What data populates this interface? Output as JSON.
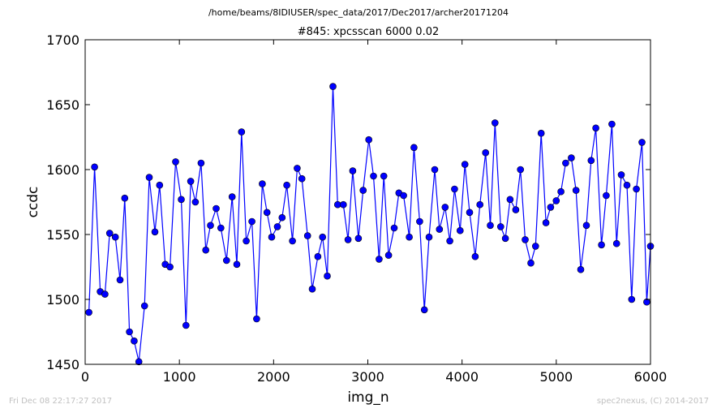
{
  "header": {
    "path": "/home/beams/8IDIUSER/spec_data/2017/Dec2017/archer20171204"
  },
  "footer": {
    "timestamp": "Fri Dec 08 22:17:27 2017",
    "credit": "spec2nexus, (C) 2014-2017"
  },
  "colors": {
    "series": "#0000ff",
    "axes": "#000000",
    "footer": "#c0c0c0"
  },
  "chart_data": {
    "type": "line",
    "title": "#845: xpcsscan 6000 0.02",
    "xlabel": "img_n",
    "ylabel": "ccdc",
    "xlim": [
      0,
      6000
    ],
    "ylim": [
      1450,
      1700
    ],
    "xticks": [
      "0",
      "1000",
      "2000",
      "3000",
      "4000",
      "5000",
      "6000"
    ],
    "yticks": [
      "1450",
      "1500",
      "1550",
      "1600",
      "1650",
      "1700"
    ],
    "grid": false,
    "legend": false,
    "marker": "circle",
    "x": [
      40,
      100,
      160,
      210,
      260,
      320,
      370,
      420,
      470,
      520,
      570,
      630,
      680,
      740,
      790,
      850,
      900,
      960,
      1020,
      1070,
      1120,
      1170,
      1230,
      1280,
      1330,
      1390,
      1440,
      1500,
      1560,
      1610,
      1660,
      1710,
      1770,
      1820,
      1880,
      1930,
      1980,
      2040,
      2090,
      2140,
      2200,
      2250,
      2300,
      2360,
      2410,
      2470,
      2520,
      2570,
      2630,
      2680,
      2740,
      2790,
      2840,
      2900,
      2950,
      3010,
      3060,
      3120,
      3170,
      3220,
      3280,
      3330,
      3380,
      3440,
      3490,
      3550,
      3600,
      3650,
      3710,
      3760,
      3820,
      3870,
      3920,
      3980,
      4030,
      4080,
      4140,
      4190,
      4250,
      4300,
      4350,
      4410,
      4460,
      4510,
      4570,
      4620,
      4670,
      4730,
      4780,
      4840,
      4890,
      4940,
      5000,
      5050,
      5100,
      5160,
      5210,
      5260,
      5320,
      5370,
      5420,
      5480,
      5530,
      5590,
      5640,
      5690,
      5750,
      5800,
      5850,
      5910,
      5960,
      6000
    ],
    "y": [
      1490,
      1602,
      1506,
      1504,
      1551,
      1548,
      1515,
      1578,
      1475,
      1468,
      1452,
      1495,
      1594,
      1552,
      1588,
      1527,
      1525,
      1606,
      1577,
      1480,
      1591,
      1575,
      1605,
      1538,
      1557,
      1570,
      1555,
      1530,
      1579,
      1527,
      1629,
      1545,
      1560,
      1485,
      1589,
      1567,
      1548,
      1556,
      1563,
      1588,
      1545,
      1601,
      1593,
      1549,
      1508,
      1533,
      1548,
      1518,
      1664,
      1573,
      1573,
      1546,
      1599,
      1547,
      1584,
      1623,
      1595,
      1531,
      1595,
      1534,
      1555,
      1582,
      1580,
      1548,
      1617,
      1560,
      1492,
      1548,
      1600,
      1554,
      1571,
      1545,
      1585,
      1553,
      1604,
      1567,
      1533,
      1573,
      1613,
      1557,
      1636,
      1556,
      1547,
      1577,
      1569,
      1600,
      1546,
      1528,
      1541,
      1628,
      1559,
      1571,
      1576,
      1583,
      1605,
      1609,
      1584,
      1523,
      1557,
      1607,
      1632,
      1542,
      1580,
      1635,
      1543,
      1596,
      1588,
      1500,
      1585,
      1621,
      1498,
      1541
    ]
  }
}
